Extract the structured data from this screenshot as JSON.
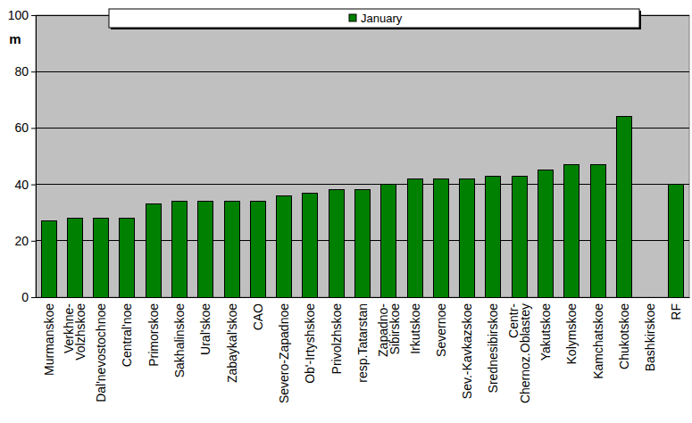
{
  "chart_data": {
    "type": "bar",
    "y_label": "m",
    "categories": [
      "Murmanskoe",
      "Verkhne-Volzhskoe",
      "Dal'nevostochnoe",
      "Central'noe",
      "Primorskoe",
      "Sakhalinskoe",
      "Ural'skoe",
      "Zabaykal'skoe",
      "CAO",
      "Severo-Zapadnoe",
      "Ob'-Irtyshskoe",
      "Privolzhskoe",
      "resp.Tatarstan",
      "Zapadno-Sibirskoe",
      "Irkutskoe",
      "Severnoe",
      "Sev.-Kavkazskoe",
      "Srednesibirskoe",
      "Centr-Chernoz.Oblastey",
      "Yakutskoe",
      "Kolymskoe",
      "Kamchatskoe",
      "Chukotskoe",
      "Bashkirskoe",
      "RF"
    ],
    "series": [
      {
        "name": "January",
        "color": "#008000",
        "values": [
          27,
          28,
          28,
          28,
          33,
          34,
          34,
          34,
          34,
          36,
          37,
          38,
          38,
          40,
          42,
          42,
          42,
          43,
          43,
          45,
          47,
          47,
          64,
          null,
          40
        ]
      }
    ],
    "ylim": [
      0,
      100
    ],
    "yticks": [
      0,
      20,
      40,
      60,
      80,
      100
    ],
    "grid": true,
    "legend": "top"
  }
}
